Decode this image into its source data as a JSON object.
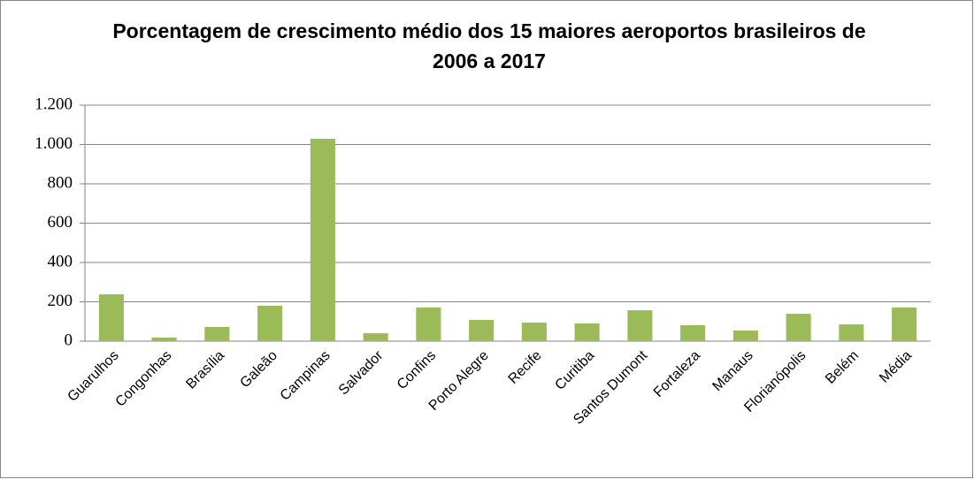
{
  "chart_data": {
    "type": "bar",
    "title": "Porcentagem de crescimento médio dos 15 maiores aeroportos brasileiros de 2006 a 2017",
    "categories": [
      "Guarulhos",
      "Congonhas",
      "Brasília",
      "Galeão",
      "Campinas",
      "Salvador",
      "Confins",
      "Porto Alegre",
      "Recife",
      "Curitiba",
      "Santos Dumont",
      "Fortaleza",
      "Manaus",
      "Florianópolis",
      "Belém",
      "Média"
    ],
    "values": [
      238,
      18,
      72,
      180,
      1029,
      40,
      171,
      108,
      94,
      90,
      157,
      81,
      54,
      139,
      85,
      171
    ],
    "color": "#9bbb59",
    "ylim": [
      0,
      1200
    ],
    "yticks": [
      0,
      200,
      400,
      600,
      800,
      {
        "value": 1000,
        "label": "1.000"
      },
      {
        "value": 1200,
        "label": "1.200"
      }
    ],
    "grid": true
  }
}
